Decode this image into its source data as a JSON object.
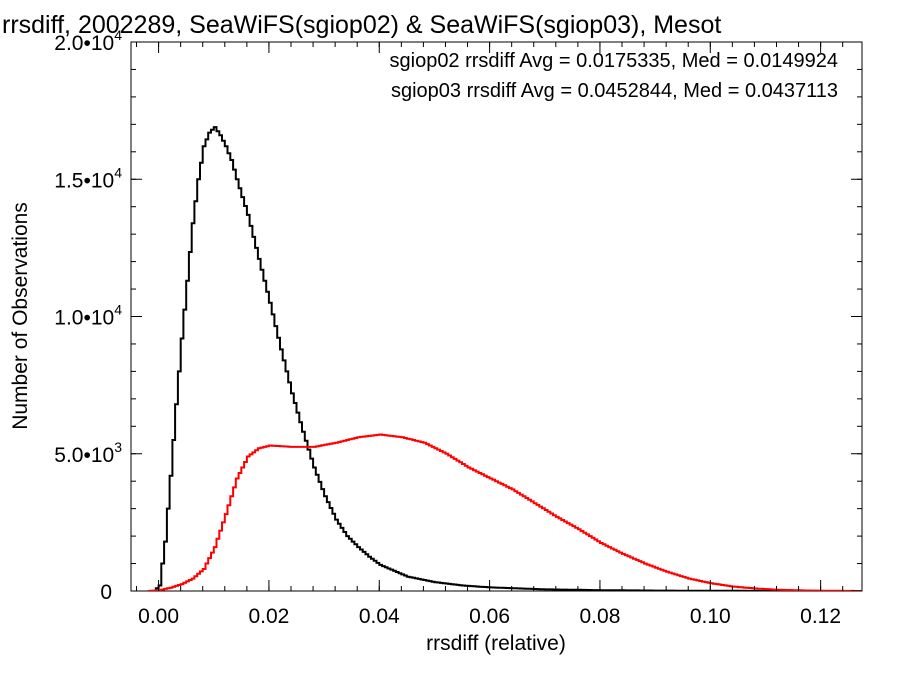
{
  "chart_data": {
    "type": "line",
    "title": "rrsdiff, 2002289, SeaWiFS(sgiop02) & SeaWiFS(sgiop03), Mesot",
    "xlabel": "rrsdiff (relative)",
    "ylabel": "Number of Observations",
    "xlim": [
      -0.005,
      0.1275
    ],
    "ylim": [
      0,
      20000
    ],
    "x_ticks": [
      {
        "value": 0.0,
        "label": "0.00"
      },
      {
        "value": 0.02,
        "label": "0.02"
      },
      {
        "value": 0.04,
        "label": "0.04"
      },
      {
        "value": 0.06,
        "label": "0.06"
      },
      {
        "value": 0.08,
        "label": "0.08"
      },
      {
        "value": 0.1,
        "label": "0.10"
      },
      {
        "value": 0.12,
        "label": "0.12"
      }
    ],
    "y_ticks": [
      {
        "value": 0,
        "mantissa": "0",
        "exponent": ""
      },
      {
        "value": 5000,
        "mantissa": "5.0•10",
        "exponent": "3"
      },
      {
        "value": 10000,
        "mantissa": "1.0•10",
        "exponent": "4"
      },
      {
        "value": 15000,
        "mantissa": "1.5•10",
        "exponent": "4"
      },
      {
        "value": 20000,
        "mantissa": "2.0•10",
        "exponent": "4"
      }
    ],
    "grid": false,
    "legend_placement": "top-right",
    "series": [
      {
        "name": "sgiop02 rrsdiff Avg = 0.0175335, Med = 0.0149924",
        "color": "#000000",
        "x": [
          -0.002,
          -0.001,
          0.0,
          0.001,
          0.002,
          0.003,
          0.004,
          0.005,
          0.006,
          0.007,
          0.008,
          0.009,
          0.01,
          0.011,
          0.012,
          0.013,
          0.014,
          0.016,
          0.018,
          0.02,
          0.022,
          0.024,
          0.026,
          0.028,
          0.03,
          0.032,
          0.034,
          0.036,
          0.038,
          0.04,
          0.045,
          0.05,
          0.055,
          0.06,
          0.07,
          0.08,
          0.09,
          0.1,
          0.11,
          0.127
        ],
        "y": [
          0,
          0,
          200,
          1800,
          4200,
          6800,
          9200,
          11300,
          13400,
          15000,
          16200,
          16700,
          16900,
          16600,
          16200,
          15700,
          15000,
          13700,
          12100,
          10500,
          8800,
          7200,
          5800,
          4500,
          3450,
          2600,
          2000,
          1600,
          1250,
          950,
          520,
          320,
          200,
          130,
          60,
          30,
          15,
          8,
          4,
          0
        ]
      },
      {
        "name": "sgiop03 rrsdiff Avg = 0.0452844, Med = 0.0437113",
        "color": "#ff0000",
        "x": [
          -0.002,
          0.0,
          0.002,
          0.004,
          0.006,
          0.008,
          0.01,
          0.012,
          0.014,
          0.016,
          0.018,
          0.02,
          0.024,
          0.028,
          0.032,
          0.036,
          0.04,
          0.044,
          0.048,
          0.052,
          0.056,
          0.06,
          0.064,
          0.068,
          0.072,
          0.076,
          0.08,
          0.084,
          0.088,
          0.092,
          0.096,
          0.1,
          0.104,
          0.108,
          0.112,
          0.118,
          0.124,
          0.127
        ],
        "y": [
          0,
          30,
          120,
          250,
          450,
          800,
          1600,
          2800,
          4100,
          4900,
          5200,
          5300,
          5250,
          5250,
          5400,
          5600,
          5700,
          5600,
          5400,
          5000,
          4500,
          4100,
          3700,
          3200,
          2700,
          2250,
          1750,
          1350,
          1000,
          700,
          450,
          280,
          160,
          90,
          45,
          15,
          5,
          0
        ]
      }
    ]
  }
}
